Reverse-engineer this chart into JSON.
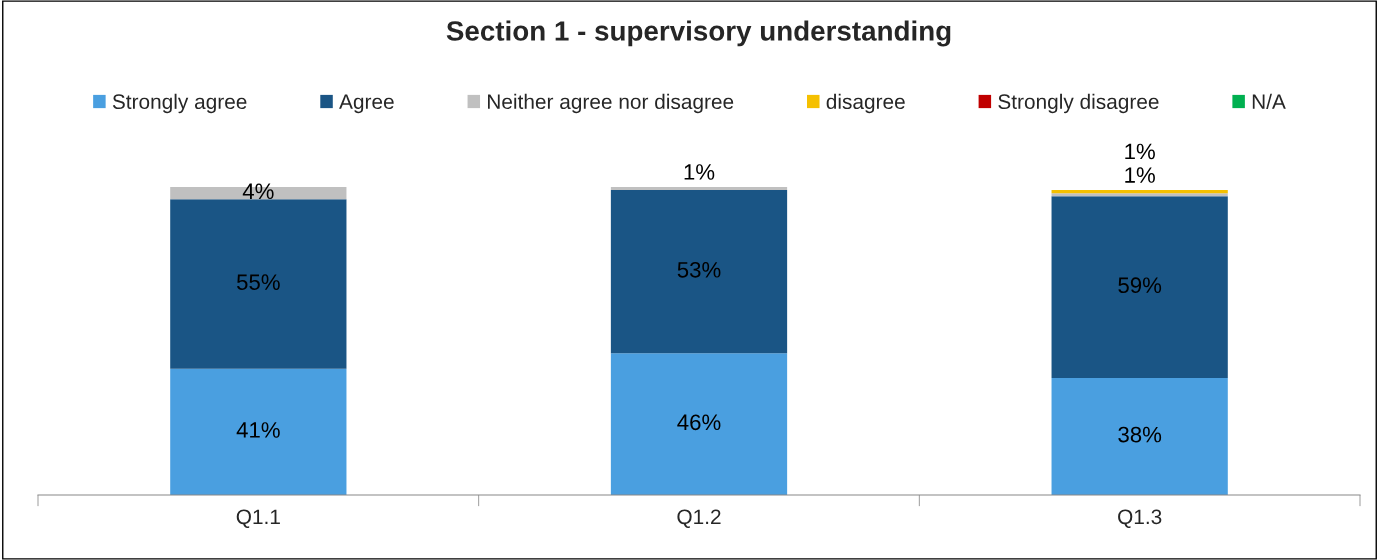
{
  "chart_data": {
    "type": "bar",
    "title": "Section 1 - supervisory understanding",
    "stacked": true,
    "legend": "top",
    "tick_labels": "x",
    "categories": [
      "Q1.1",
      "Q1.2",
      "Q1.3"
    ],
    "series": [
      {
        "name": "Strongly agree",
        "color": "#4a9fe0",
        "values": [
          41,
          46,
          38
        ],
        "value_labels": [
          "41%",
          "46%",
          "38%"
        ]
      },
      {
        "name": "Agree",
        "color": "#1a5585",
        "values": [
          55,
          53,
          59
        ],
        "value_labels": [
          "55%",
          "53%",
          "59%"
        ]
      },
      {
        "name": "Neither agree nor disagree",
        "color": "#c0c0c0",
        "values": [
          4,
          1,
          1
        ],
        "value_labels": [
          "4%",
          "1%",
          "1%"
        ]
      },
      {
        "name": "disagree",
        "color": "#f5c000",
        "values": [
          0,
          0,
          1
        ],
        "value_labels": [
          null,
          null,
          "1%"
        ]
      },
      {
        "name": "Strongly disagree",
        "color": "#c00000",
        "values": [
          0,
          0,
          0
        ],
        "value_labels": [
          null,
          null,
          null
        ]
      },
      {
        "name": "N/A",
        "color": "#00b050",
        "values": [
          0,
          0,
          0
        ],
        "value_labels": [
          null,
          null,
          null
        ]
      }
    ]
  }
}
